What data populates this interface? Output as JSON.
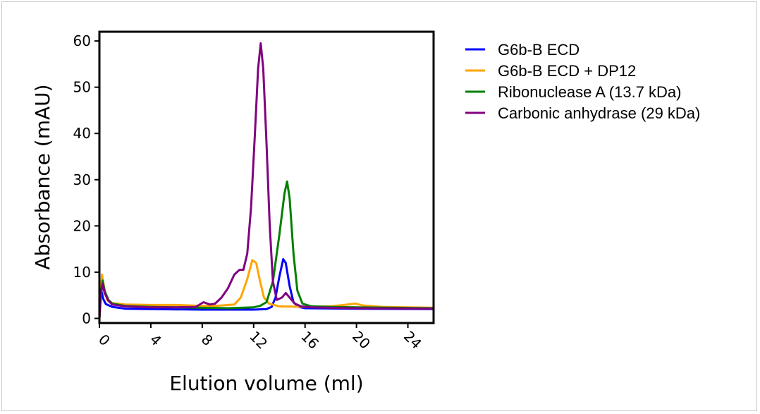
{
  "chart_data": {
    "type": "line",
    "xlabel": "Elution volume (ml)",
    "ylabel": "Absorbance (mAU)",
    "xlim": [
      0,
      26
    ],
    "ylim": [
      -1,
      62
    ],
    "xticks": [
      0,
      4,
      8,
      12,
      16,
      20,
      24
    ],
    "yticks": [
      0,
      10,
      20,
      30,
      40,
      50,
      60
    ],
    "grid": false,
    "legend_position": "right",
    "series": [
      {
        "name": "G6b-B ECD",
        "color": "#0000ff",
        "points": [
          [
            0,
            0
          ],
          [
            0.15,
            6
          ],
          [
            0.3,
            4.2
          ],
          [
            0.5,
            3.1
          ],
          [
            1,
            2.5
          ],
          [
            2,
            2.1
          ],
          [
            4,
            2.0
          ],
          [
            8,
            1.9
          ],
          [
            12,
            1.9
          ],
          [
            13,
            2.0
          ],
          [
            13.4,
            2.5
          ],
          [
            13.7,
            4.5
          ],
          [
            14,
            9
          ],
          [
            14.3,
            12.8
          ],
          [
            14.5,
            12
          ],
          [
            14.8,
            7
          ],
          [
            15.1,
            3.5
          ],
          [
            15.5,
            2.5
          ],
          [
            16,
            2.2
          ],
          [
            20,
            2.1
          ],
          [
            26,
            2.0
          ]
        ]
      },
      {
        "name": "G6b-B ECD + DP12",
        "color": "#ffa500",
        "points": [
          [
            0,
            0
          ],
          [
            0.1,
            4
          ],
          [
            0.2,
            9.5
          ],
          [
            0.35,
            7
          ],
          [
            0.6,
            4
          ],
          [
            1,
            3.3
          ],
          [
            2,
            3.0
          ],
          [
            4,
            2.9
          ],
          [
            6,
            2.9
          ],
          [
            8,
            2.7
          ],
          [
            9,
            2.7
          ],
          [
            10.5,
            3.0
          ],
          [
            11,
            4.5
          ],
          [
            11.5,
            8.5
          ],
          [
            11.9,
            12.6
          ],
          [
            12.2,
            12
          ],
          [
            12.5,
            8
          ],
          [
            12.8,
            4.5
          ],
          [
            13.2,
            3.2
          ],
          [
            14,
            2.6
          ],
          [
            16,
            2.5
          ],
          [
            18,
            2.6
          ],
          [
            19,
            2.9
          ],
          [
            19.9,
            3.2
          ],
          [
            20.5,
            2.8
          ],
          [
            22,
            2.5
          ],
          [
            26,
            2.3
          ]
        ]
      },
      {
        "name": "Ribonuclease A (13.7 kDa)",
        "color": "#008000",
        "points": [
          [
            0,
            0
          ],
          [
            0.1,
            5
          ],
          [
            0.25,
            8.2
          ],
          [
            0.4,
            6
          ],
          [
            0.7,
            4
          ],
          [
            1,
            3.2
          ],
          [
            2,
            2.7
          ],
          [
            4,
            2.5
          ],
          [
            6,
            2.4
          ],
          [
            8,
            2.3
          ],
          [
            10,
            2.2
          ],
          [
            12,
            2.4
          ],
          [
            12.5,
            2.7
          ],
          [
            13,
            3.5
          ],
          [
            13.5,
            8
          ],
          [
            14,
            18
          ],
          [
            14.4,
            27
          ],
          [
            14.6,
            29.6
          ],
          [
            14.8,
            26
          ],
          [
            15.1,
            14
          ],
          [
            15.4,
            6
          ],
          [
            15.8,
            3.2
          ],
          [
            16.5,
            2.6
          ],
          [
            18,
            2.5
          ],
          [
            20,
            2.4
          ],
          [
            26,
            2.2
          ]
        ]
      },
      {
        "name": "Carbonic anhydrase (29 kDa)",
        "color": "#800080",
        "points": [
          [
            0,
            0
          ],
          [
            0.1,
            5
          ],
          [
            0.25,
            7.5
          ],
          [
            0.4,
            5.5
          ],
          [
            0.7,
            3.8
          ],
          [
            1,
            3.0
          ],
          [
            2,
            2.6
          ],
          [
            4,
            2.4
          ],
          [
            6,
            2.4
          ],
          [
            7.5,
            2.5
          ],
          [
            8.1,
            3.5
          ],
          [
            8.6,
            3.0
          ],
          [
            9,
            3.2
          ],
          [
            9.5,
            4.5
          ],
          [
            10,
            6.5
          ],
          [
            10.5,
            9.5
          ],
          [
            10.9,
            10.5
          ],
          [
            11.2,
            10.5
          ],
          [
            11.5,
            14
          ],
          [
            11.8,
            24
          ],
          [
            12.1,
            40
          ],
          [
            12.35,
            54
          ],
          [
            12.55,
            59.5
          ],
          [
            12.75,
            54
          ],
          [
            13,
            38
          ],
          [
            13.25,
            20
          ],
          [
            13.5,
            8
          ],
          [
            13.8,
            4
          ],
          [
            14.2,
            4.5
          ],
          [
            14.5,
            5.5
          ],
          [
            14.8,
            4.5
          ],
          [
            15.2,
            3.2
          ],
          [
            15.7,
            2.6
          ],
          [
            16.5,
            2.4
          ],
          [
            18,
            2.3
          ],
          [
            20,
            2.2
          ],
          [
            26,
            2.1
          ]
        ]
      }
    ]
  }
}
